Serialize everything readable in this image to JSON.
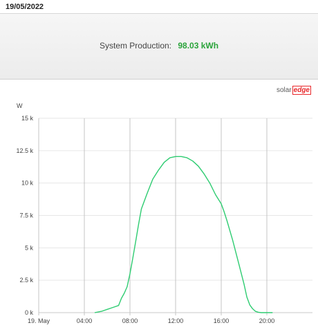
{
  "header": {
    "date": "19/05/2022"
  },
  "summary": {
    "label": "System Production:",
    "value": "98.03 kWh"
  },
  "brand": {
    "prefix": "solar",
    "suffix": "edge"
  },
  "colors": {
    "line": "#2ecc71",
    "value": "#2aa33a",
    "accent": "#e8282b"
  },
  "chart_data": {
    "type": "line",
    "ylabel": "W",
    "yticks": [
      "0 k",
      "2.5 k",
      "5 k",
      "7.5 k",
      "10 k",
      "12.5 k",
      "15 k"
    ],
    "ylim": [
      0,
      15000
    ],
    "xlim": [
      0,
      24
    ],
    "xticks": [
      {
        "x": 0,
        "label": "19. May"
      },
      {
        "x": 4,
        "label": "04:00"
      },
      {
        "x": 8,
        "label": "08:00"
      },
      {
        "x": 12,
        "label": "12:00"
      },
      {
        "x": 16,
        "label": "16:00"
      },
      {
        "x": 20,
        "label": "20:00"
      }
    ],
    "grid": true,
    "series": [
      {
        "x": [
          4.9,
          5.5,
          6.0,
          6.5,
          7.0,
          7.25,
          7.5,
          7.75,
          8.0,
          8.25,
          8.5,
          8.75,
          9.0,
          9.5,
          10.0,
          10.5,
          11.0,
          11.5,
          12.0,
          12.5,
          13.0,
          13.5,
          14.0,
          14.5,
          15.0,
          15.5,
          16.0,
          16.25,
          16.5,
          17.0,
          17.5,
          18.0,
          18.25,
          18.5,
          18.75,
          19.0,
          19.25,
          19.5,
          19.75,
          20.0,
          20.5
        ],
        "y": [
          0,
          100,
          250,
          400,
          550,
          1100,
          1500,
          2000,
          3000,
          4200,
          5500,
          6800,
          8000,
          9200,
          10300,
          11000,
          11600,
          11950,
          12050,
          12050,
          11950,
          11700,
          11300,
          10700,
          10000,
          9100,
          8400,
          7800,
          7100,
          5600,
          3900,
          2200,
          1200,
          600,
          300,
          100,
          30,
          0,
          0,
          0,
          0
        ]
      }
    ]
  }
}
